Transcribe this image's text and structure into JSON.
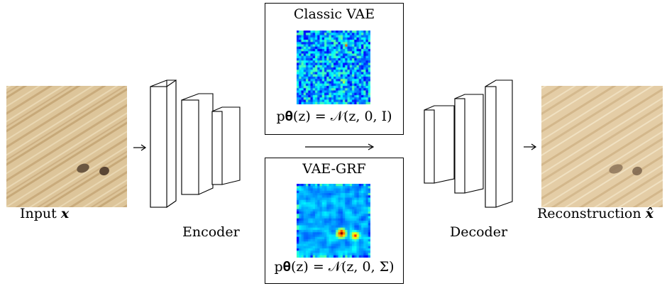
{
  "input": {
    "label_text": "Input",
    "label_symbol": "x"
  },
  "encoder": {
    "label": "Encoder"
  },
  "decoder": {
    "label": "Decoder"
  },
  "output": {
    "label_text": "Reconstruction",
    "label_symbol": "x̂"
  },
  "classic_box": {
    "title": "Classic VAE",
    "formula": "p𝛉(z) = 𝒩(z, 0, I)"
  },
  "grf_box": {
    "title": "VAE-GRF",
    "formula": "p𝛉(z) = 𝒩(z, 0, Σ)"
  },
  "colors": {
    "heat_low": "#0a2fd8",
    "heat_mid": "#21a7ff",
    "heat_high": "#ffdd00",
    "sand": "#ddc59a"
  }
}
